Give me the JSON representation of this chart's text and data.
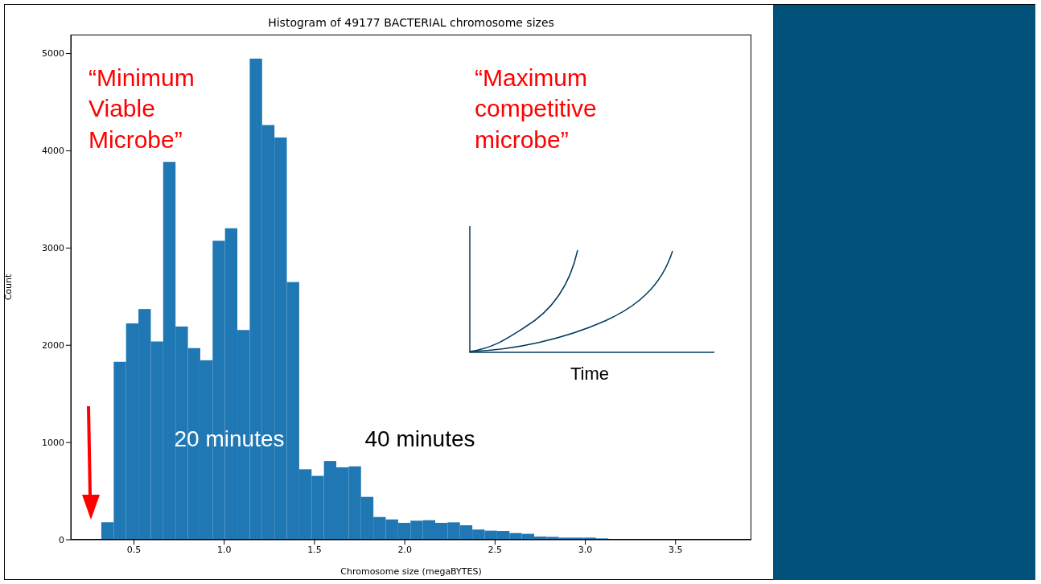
{
  "chart_data": {
    "type": "histogram",
    "title": "Histogram of 49177 BACTERIAL chromosome sizes",
    "xlabel": "Chromosome size (megaBYTES)",
    "ylabel": "Count",
    "color": "#1f77b4",
    "bins": [
      0.32,
      0.3885,
      0.457,
      0.5255,
      0.594,
      0.6625,
      0.731,
      0.7995,
      0.868,
      0.9365,
      1.005,
      1.0735,
      1.142,
      1.2105,
      1.279,
      1.3475,
      1.416,
      1.4845,
      1.553,
      1.6215,
      1.69,
      1.7585,
      1.827,
      1.8955,
      1.964,
      2.0325,
      2.101,
      2.1695,
      2.238,
      2.3065,
      2.375,
      2.4435,
      2.512,
      2.5805,
      2.649,
      2.7175,
      2.786,
      2.8545,
      2.923,
      2.9915,
      3.06,
      3.1285,
      3.197,
      3.2655,
      3.334,
      3.4025,
      3.471,
      3.5395,
      3.608,
      3.6765,
      3.745
    ],
    "values": [
      180,
      1830,
      2225,
      2373,
      2039,
      3886,
      2193,
      1971,
      1846,
      3075,
      3203,
      2157,
      4948,
      4265,
      4137,
      2650,
      725,
      657,
      810,
      745,
      755,
      441,
      234,
      209,
      174,
      196,
      201,
      174,
      179,
      149,
      105,
      94,
      91,
      69,
      61,
      33,
      30,
      22,
      22,
      22,
      14,
      8,
      8,
      8,
      3,
      8,
      3,
      2,
      2,
      2
    ],
    "xlim": [
      0.15,
      3.92
    ],
    "xticks": [
      0.5,
      {
        "value": 1,
        "label": "1.0"
      },
      1.5,
      {
        "value": 2,
        "label": "2.0"
      },
      2.5,
      {
        "value": 3,
        "label": "3.0"
      },
      3.5
    ],
    "ylim": [
      0,
      5195
    ],
    "yticks": [
      0,
      1000,
      2000,
      3000,
      4000,
      5000
    ],
    "annotations": [
      "“Minimum Viable Microbe”",
      "“Maximum competitive microbe”",
      "20 minutes",
      "40 minutes",
      "Time"
    ]
  }
}
